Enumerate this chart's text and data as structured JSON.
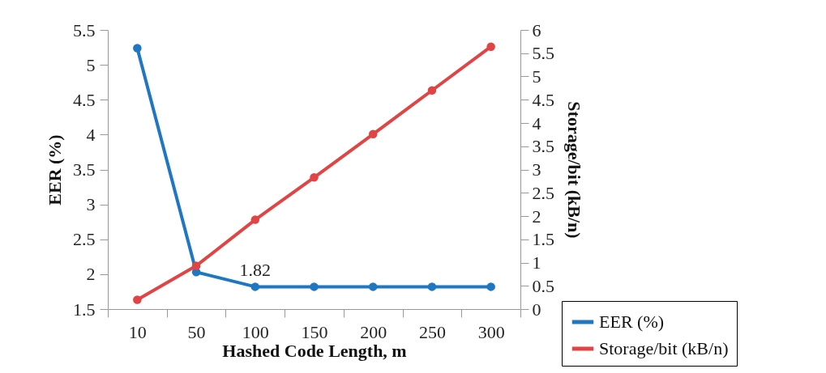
{
  "chart_data": {
    "type": "line",
    "xlabel": "Hashed Code Length, m",
    "ylabel": "EER (%)",
    "y2label": "Storage/bit (kB/n)",
    "categories": [
      "10",
      "50",
      "100",
      "150",
      "200",
      "250",
      "300"
    ],
    "series": [
      {
        "name": "EER (%)",
        "color": "#1f77c2",
        "values": [
          5.24,
          2.03,
          1.82,
          1.82,
          1.82,
          1.82,
          1.82
        ],
        "value_labels": [
          null,
          null,
          "1.82",
          null,
          null,
          null,
          null
        ]
      },
      {
        "name": "Storage/bit (kB/n)",
        "color": "#e04444",
        "axis": "y2",
        "values": [
          0.2,
          0.93,
          1.92,
          2.83,
          3.76,
          4.7,
          5.64
        ]
      }
    ],
    "ylim": [
      1.5,
      5.5
    ],
    "yticks": [
      1.5,
      2,
      2.5,
      3,
      3.5,
      4,
      4.5,
      5,
      5.5
    ],
    "y2lim": [
      0,
      6
    ],
    "y2ticks": [
      0,
      0.5,
      1,
      1.5,
      2,
      2.5,
      3,
      3.5,
      4,
      4.5,
      5,
      5.5,
      6
    ],
    "grid": false,
    "legend": "bottom right",
    "marker": "circle",
    "line_style": "solid"
  }
}
